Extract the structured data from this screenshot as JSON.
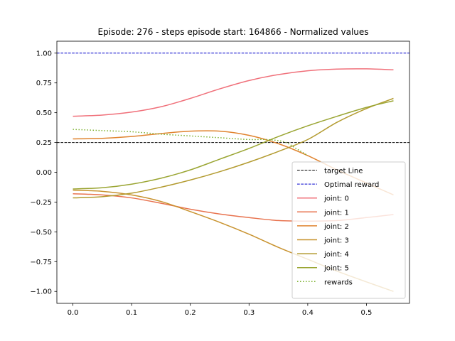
{
  "chart_data": {
    "type": "line",
    "title": "Episode: 276 - steps episode start: 164866 - Normalized values",
    "xlabel": "",
    "ylabel": "",
    "xlim": [
      -0.0273,
      0.5733
    ],
    "ylim": [
      -1.1,
      1.1
    ],
    "xticks": [
      0.0,
      0.1,
      0.2,
      0.3,
      0.4,
      0.5
    ],
    "xtick_labels": [
      "0.0",
      "0.1",
      "0.2",
      "0.3",
      "0.4",
      "0.5"
    ],
    "yticks": [
      1.0,
      0.75,
      0.5,
      0.25,
      0.0,
      -0.25,
      -0.5,
      -0.75,
      -1.0
    ],
    "ytick_labels": [
      "1.00",
      "0.75",
      "0.50",
      "0.25",
      "0.00",
      "−0.25",
      "−0.50",
      "−0.75",
      "−1.00"
    ],
    "grid": false,
    "legend_position": "lower right",
    "hlines": [
      {
        "name": "target Line",
        "y": 0.25,
        "color": "#000000",
        "style": "dashed"
      },
      {
        "name": "Optimal reward",
        "y": 1.0,
        "color": "#0000cc",
        "style": "dashed"
      }
    ],
    "x": [
      0.0,
      0.05,
      0.1,
      0.15,
      0.2,
      0.25,
      0.3,
      0.35,
      0.4,
      0.45,
      0.5,
      0.546
    ],
    "series": [
      {
        "name": "joint: 0",
        "color": "#f0707a",
        "style": "solid",
        "values": [
          0.47,
          0.48,
          0.505,
          0.55,
          0.62,
          0.7,
          0.77,
          0.82,
          0.852,
          0.866,
          0.868,
          0.86
        ]
      },
      {
        "name": "joint: 1",
        "color": "#e8734f",
        "style": "solid",
        "values": [
          -0.18,
          -0.19,
          -0.215,
          -0.26,
          -0.31,
          -0.35,
          -0.38,
          -0.405,
          -0.41,
          -0.405,
          -0.38,
          -0.355
        ]
      },
      {
        "name": "joint: 2",
        "color": "#e0832e",
        "style": "solid",
        "values": [
          0.28,
          0.285,
          0.3,
          0.325,
          0.345,
          0.345,
          0.31,
          0.24,
          0.14,
          0.02,
          -0.09,
          -0.19
        ]
      },
      {
        "name": "joint: 3",
        "color": "#c8922e",
        "style": "solid",
        "values": [
          -0.15,
          -0.16,
          -0.19,
          -0.245,
          -0.33,
          -0.42,
          -0.52,
          -0.63,
          -0.73,
          -0.83,
          -0.92,
          -1.0
        ]
      },
      {
        "name": "joint: 4",
        "color": "#b39b30",
        "style": "solid",
        "values": [
          -0.215,
          -0.205,
          -0.175,
          -0.125,
          -0.065,
          0.005,
          0.085,
          0.175,
          0.275,
          0.42,
          0.535,
          0.62
        ]
      },
      {
        "name": "joint: 5",
        "color": "#9aa532",
        "style": "solid",
        "values": [
          -0.14,
          -0.13,
          -0.1,
          -0.05,
          0.02,
          0.11,
          0.2,
          0.3,
          0.39,
          0.47,
          0.545,
          0.6
        ]
      },
      {
        "name": "rewards",
        "color": "#7bb02e",
        "style": "dotted",
        "x": [
          0.0,
          0.05,
          0.1,
          0.15,
          0.2,
          0.25,
          0.3,
          0.33,
          0.36,
          0.38,
          0.4
        ],
        "values": [
          0.36,
          0.35,
          0.34,
          0.32,
          0.305,
          0.29,
          0.275,
          0.275,
          0.255,
          0.2,
          0.14
        ]
      }
    ]
  }
}
